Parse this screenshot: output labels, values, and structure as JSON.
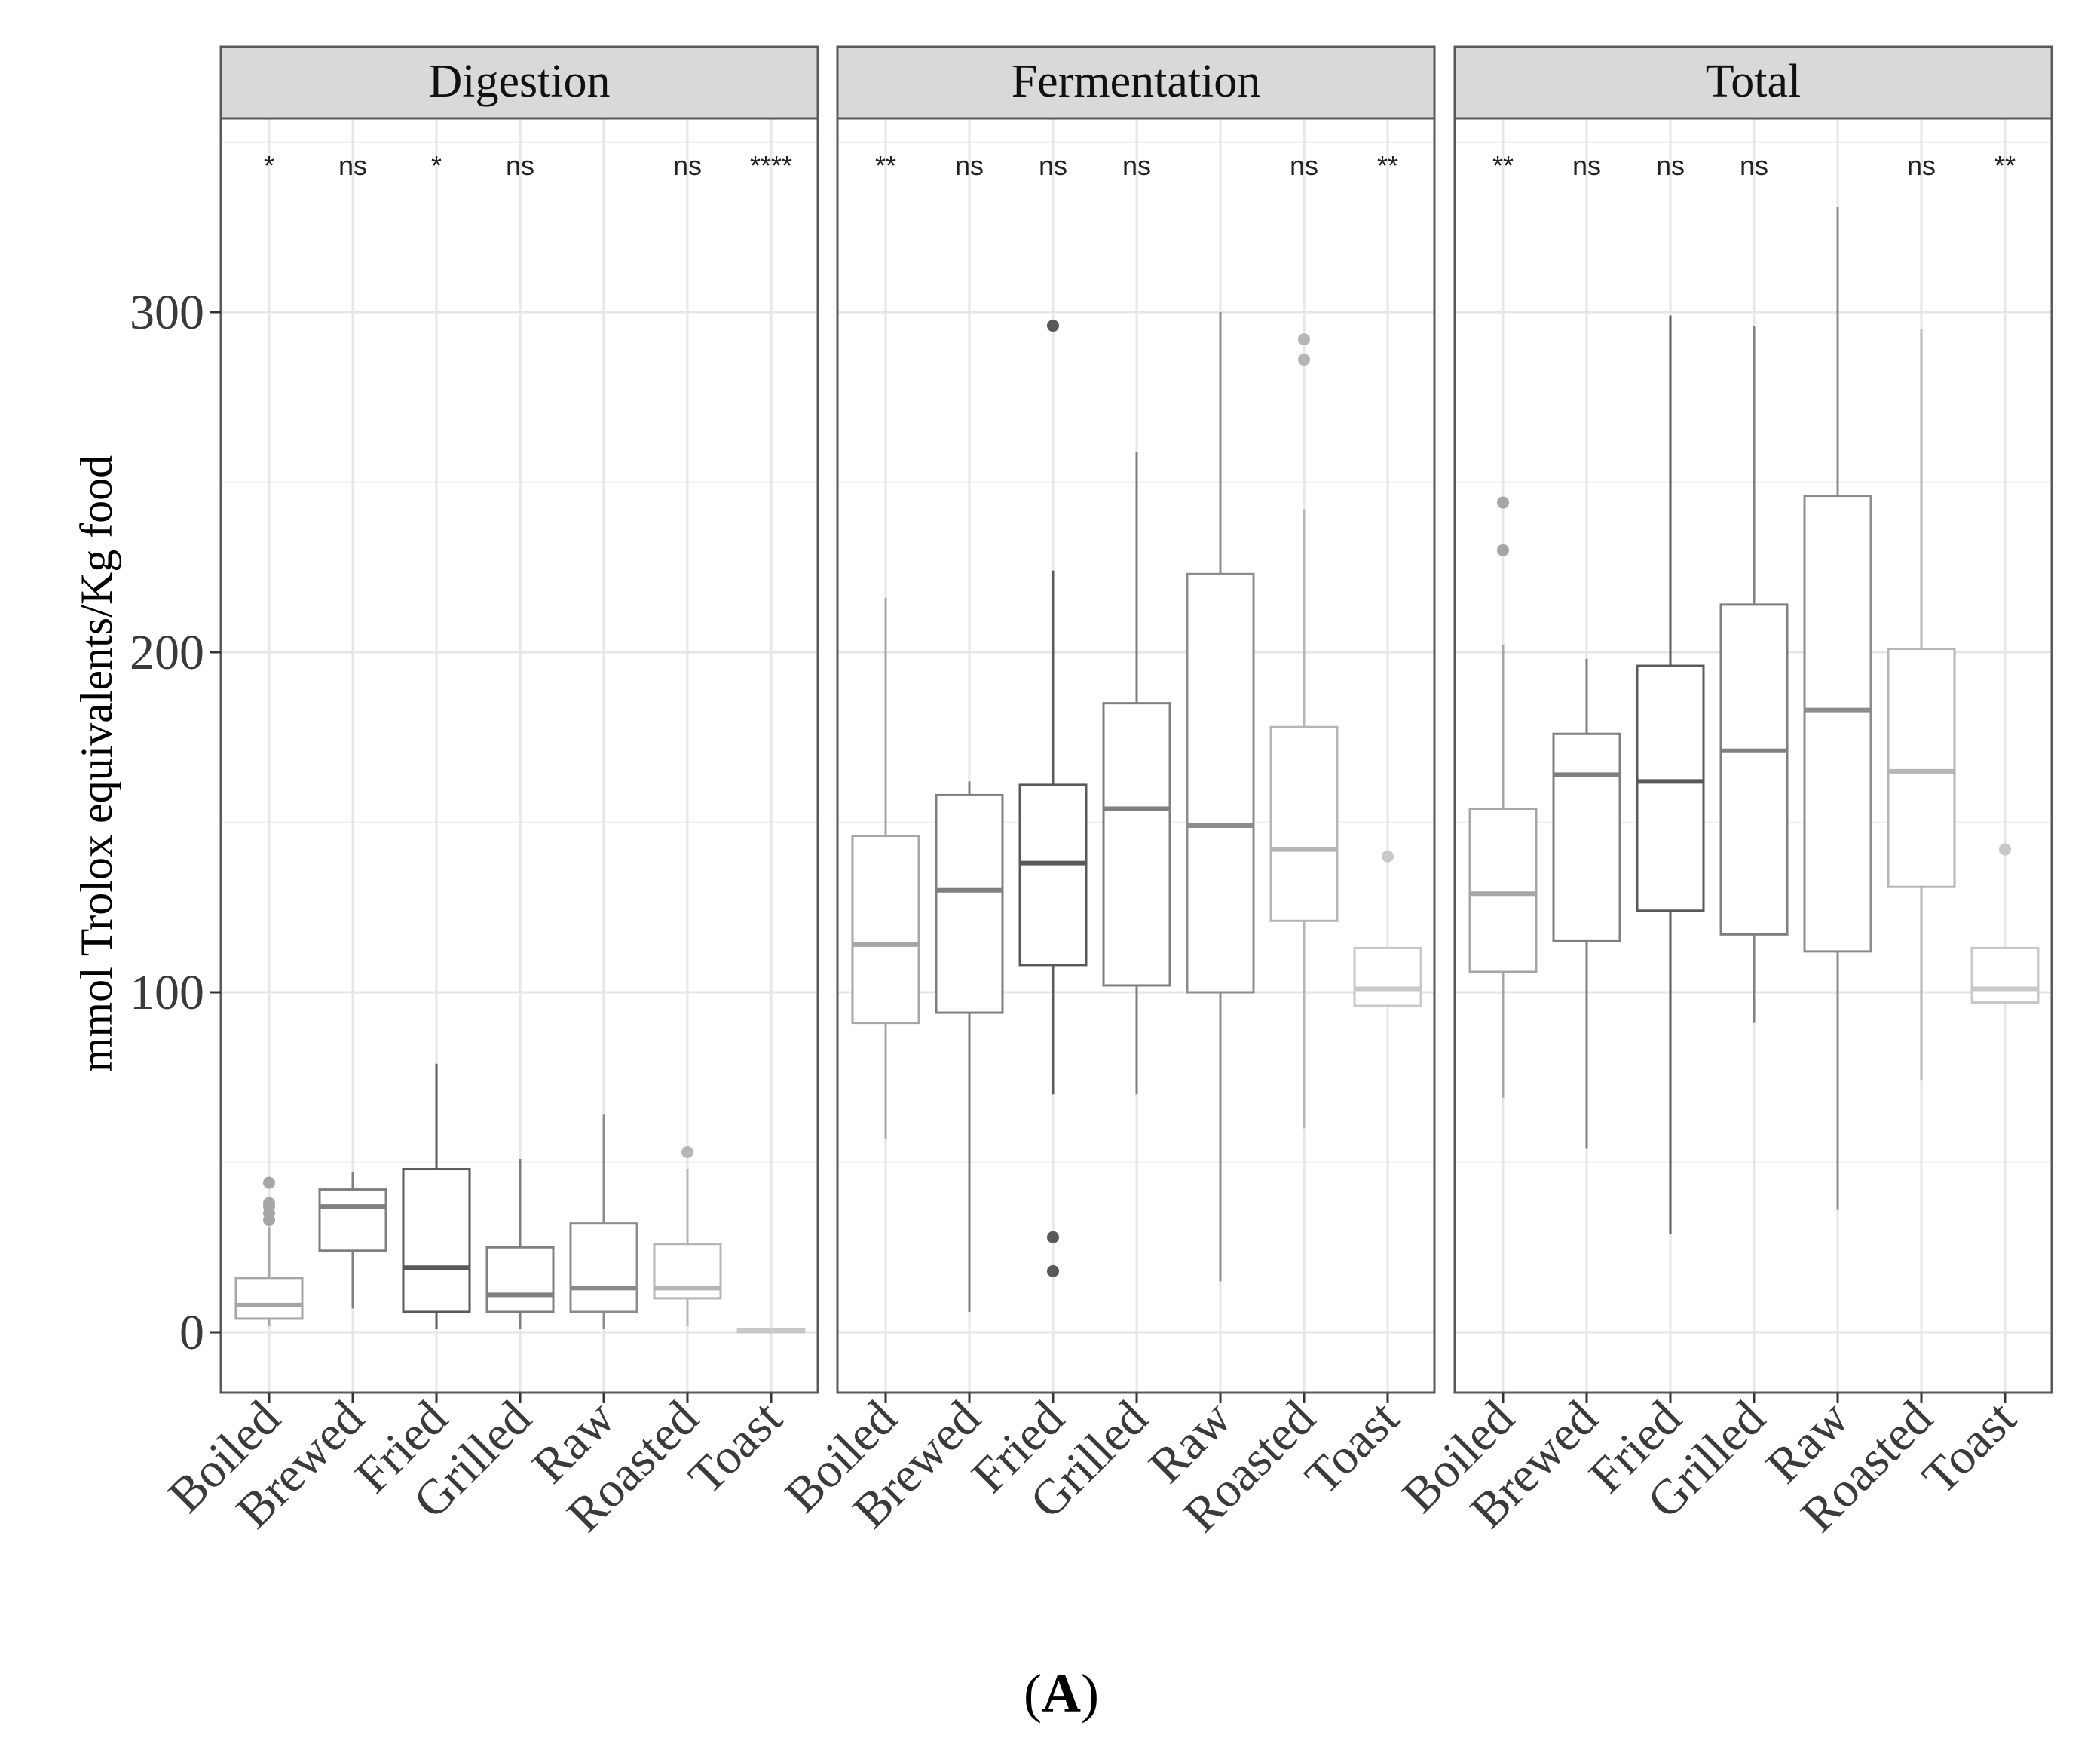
{
  "chart_data": {
    "type": "boxplot",
    "facets": [
      "Digestion",
      "Fermentation",
      "Total"
    ],
    "categories": [
      "Boiled",
      "Brewed",
      "Fried",
      "Grilled",
      "Raw",
      "Roasted",
      "Toast"
    ],
    "ylabel": "mmol Trolox equivalents/Kg food",
    "xlabel": "",
    "ylim": [
      -17,
      355
    ],
    "yticks": [
      0,
      100,
      200,
      300
    ],
    "grid": true,
    "caption": {
      "open": "(",
      "letter": "A",
      "close": ")"
    },
    "panels": [
      {
        "facet": "Digestion",
        "significance": [
          "*",
          "ns",
          "*",
          "ns",
          "",
          "ns",
          "****"
        ],
        "boxes": [
          {
            "category": "Boiled",
            "whisker_low": 2,
            "q1": 4,
            "median": 8,
            "q3": 16,
            "whisker_high": 31,
            "outliers": [
              33,
              35,
              37,
              38,
              44
            ],
            "color": "#a6a6a6"
          },
          {
            "category": "Brewed",
            "whisker_low": 7,
            "q1": 24,
            "median": 37,
            "q3": 42,
            "whisker_high": 47,
            "outliers": [],
            "color": "#7f7f7f"
          },
          {
            "category": "Fried",
            "whisker_low": 1,
            "q1": 6,
            "median": 19,
            "q3": 48,
            "whisker_high": 79,
            "outliers": [],
            "color": "#595959"
          },
          {
            "category": "Grilled",
            "whisker_low": 1,
            "q1": 6,
            "median": 11,
            "q3": 25,
            "whisker_high": 51,
            "outliers": [],
            "color": "#7f7f7f"
          },
          {
            "category": "Raw",
            "whisker_low": 1,
            "q1": 6,
            "median": 13,
            "q3": 32,
            "whisker_high": 64,
            "outliers": [],
            "color": "#8c8c8c"
          },
          {
            "category": "Roasted",
            "whisker_low": 2,
            "q1": 10,
            "median": 13,
            "q3": 26,
            "whisker_high": 48,
            "outliers": [
              53
            ],
            "color": "#b5b5b5"
          },
          {
            "category": "Toast",
            "whisker_low": 0,
            "q1": 0,
            "median": 0.5,
            "q3": 1,
            "whisker_high": 1,
            "outliers": [],
            "color": "#c8c8c8"
          }
        ]
      },
      {
        "facet": "Fermentation",
        "significance": [
          "**",
          "ns",
          "ns",
          "ns",
          "",
          "ns",
          "**"
        ],
        "boxes": [
          {
            "category": "Boiled",
            "whisker_low": 57,
            "q1": 91,
            "median": 114,
            "q3": 146,
            "whisker_high": 216,
            "outliers": [],
            "color": "#a6a6a6"
          },
          {
            "category": "Brewed",
            "whisker_low": 6,
            "q1": 94,
            "median": 130,
            "q3": 158,
            "whisker_high": 162,
            "outliers": [],
            "color": "#7f7f7f"
          },
          {
            "category": "Fried",
            "whisker_low": 70,
            "q1": 108,
            "median": 138,
            "q3": 161,
            "whisker_high": 224,
            "outliers": [
              296,
              28,
              18
            ],
            "color": "#595959"
          },
          {
            "category": "Grilled",
            "whisker_low": 70,
            "q1": 102,
            "median": 154,
            "q3": 185,
            "whisker_high": 259,
            "outliers": [],
            "color": "#7f7f7f"
          },
          {
            "category": "Raw",
            "whisker_low": 15,
            "q1": 100,
            "median": 149,
            "q3": 223,
            "whisker_high": 300,
            "outliers": [],
            "color": "#8c8c8c"
          },
          {
            "category": "Roasted",
            "whisker_low": 60,
            "q1": 121,
            "median": 142,
            "q3": 178,
            "whisker_high": 242,
            "outliers": [
              292,
              286
            ],
            "color": "#b5b5b5"
          },
          {
            "category": "Toast",
            "whisker_low": 96,
            "q1": 96,
            "median": 101,
            "q3": 113,
            "whisker_high": 113,
            "outliers": [
              140
            ],
            "color": "#c8c8c8"
          }
        ]
      },
      {
        "facet": "Total",
        "significance": [
          "**",
          "ns",
          "ns",
          "ns",
          "",
          "ns",
          "**"
        ],
        "boxes": [
          {
            "category": "Boiled",
            "whisker_low": 69,
            "q1": 106,
            "median": 129,
            "q3": 154,
            "whisker_high": 202,
            "outliers": [
              244,
              230
            ],
            "color": "#a6a6a6"
          },
          {
            "category": "Brewed",
            "whisker_low": 54,
            "q1": 115,
            "median": 164,
            "q3": 176,
            "whisker_high": 198,
            "outliers": [],
            "color": "#7f7f7f"
          },
          {
            "category": "Fried",
            "whisker_low": 29,
            "q1": 124,
            "median": 162,
            "q3": 196,
            "whisker_high": 299,
            "outliers": [],
            "color": "#595959"
          },
          {
            "category": "Grilled",
            "whisker_low": 91,
            "q1": 117,
            "median": 171,
            "q3": 214,
            "whisker_high": 296,
            "outliers": [],
            "color": "#7f7f7f"
          },
          {
            "category": "Raw",
            "whisker_low": 36,
            "q1": 112,
            "median": 183,
            "q3": 246,
            "whisker_high": 331,
            "outliers": [],
            "color": "#8c8c8c"
          },
          {
            "category": "Roasted",
            "whisker_low": 74,
            "q1": 131,
            "median": 165,
            "q3": 201,
            "whisker_high": 295,
            "outliers": [],
            "color": "#b5b5b5"
          },
          {
            "category": "Toast",
            "whisker_low": 97,
            "q1": 97,
            "median": 101,
            "q3": 113,
            "whisker_high": 113,
            "outliers": [
              142
            ],
            "color": "#c8c8c8"
          }
        ]
      }
    ]
  }
}
